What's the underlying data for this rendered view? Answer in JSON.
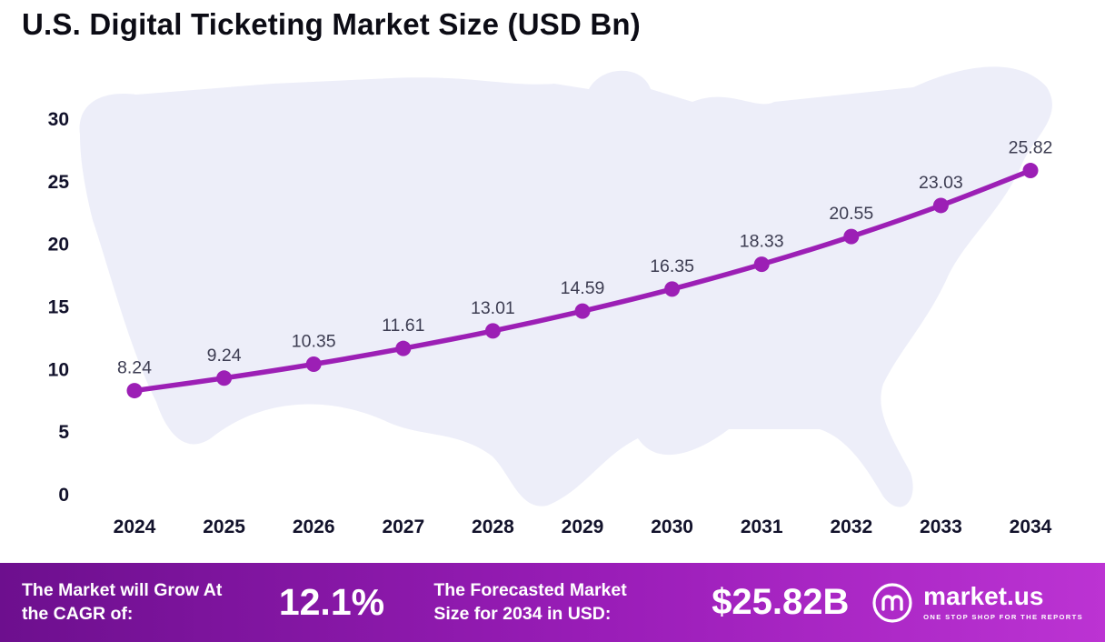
{
  "title": "U.S. Digital Ticketing Market Size (USD Bn)",
  "chart_data": {
    "type": "line",
    "title": "U.S. Digital Ticketing Market Size (USD Bn)",
    "x": [
      "2024",
      "2025",
      "2026",
      "2027",
      "2028",
      "2029",
      "2030",
      "2031",
      "2032",
      "2033",
      "2034"
    ],
    "values": [
      8.24,
      9.24,
      10.35,
      11.61,
      13.01,
      14.59,
      16.35,
      18.33,
      20.55,
      23.03,
      25.82
    ],
    "data_labels": [
      "8.24",
      "9.24",
      "10.35",
      "11.61",
      "13.01",
      "14.59",
      "16.35",
      "18.33",
      "20.55",
      "23.03",
      "25.82"
    ],
    "ylim": [
      0,
      30
    ],
    "yticks": [
      0,
      5,
      10,
      15,
      20,
      25,
      30
    ],
    "grid": false,
    "legend": false,
    "line_color": "#9c1fb5",
    "point_color": "#9c1fb5",
    "value_label_color": "#3d3d52",
    "axis_label_color": "#12122b",
    "background_map": "usa-silhouette"
  },
  "footer": {
    "cagr_label": "The Market will Grow At the CAGR of:",
    "cagr_value": "12.1%",
    "forecast_label": "The Forecasted Market Size for 2034 in USD:",
    "forecast_value": "$25.82B",
    "brand": "market.us",
    "brand_tagline": "ONE STOP SHOP FOR THE REPORTS"
  }
}
